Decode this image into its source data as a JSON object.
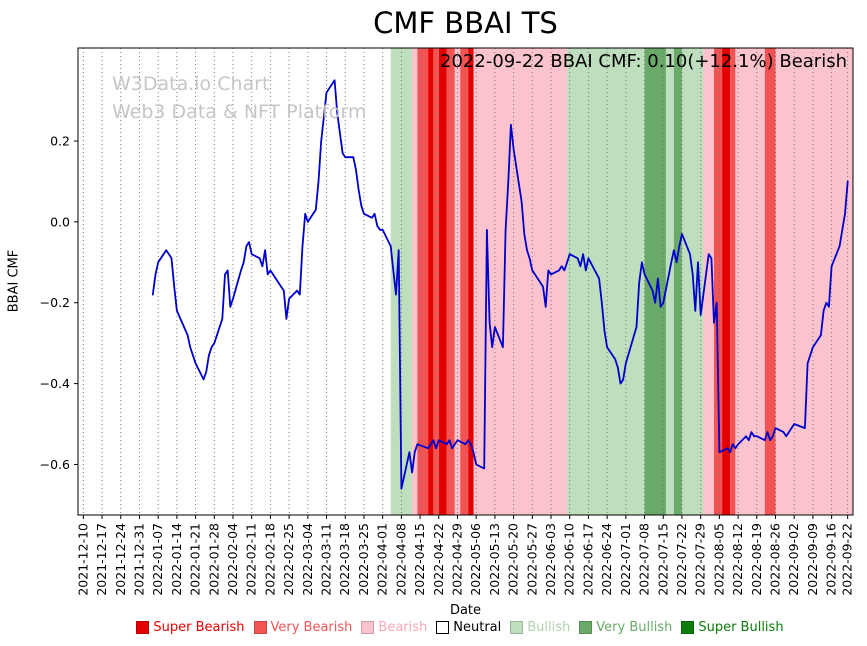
{
  "chart_data": {
    "type": "line",
    "title": "CMF BBAI TS",
    "annotation": "2022-09-22 BBAI CMF: 0.10(+12.1%) Bearish",
    "watermark": {
      "line1": "W3Data.io Chart",
      "line2": "Web3 Data & NFT Platform"
    },
    "xlabel": "Date",
    "ylabel": "BBAI CMF",
    "xlim": [
      "2021-12-08",
      "2022-09-24"
    ],
    "ylim": [
      -0.725,
      0.43
    ],
    "line_color": "#0000cd",
    "grid": {
      "axis": "x",
      "style": "dotted",
      "color": "#6e6e6e"
    },
    "x_ticks": [
      "2021-12-10",
      "2021-12-17",
      "2021-12-24",
      "2021-12-31",
      "2022-01-07",
      "2022-01-14",
      "2022-01-21",
      "2022-01-28",
      "2022-02-04",
      "2022-02-11",
      "2022-02-18",
      "2022-02-25",
      "2022-03-04",
      "2022-03-11",
      "2022-03-18",
      "2022-03-25",
      "2022-04-01",
      "2022-04-08",
      "2022-04-15",
      "2022-04-22",
      "2022-04-29",
      "2022-05-06",
      "2022-05-13",
      "2022-05-20",
      "2022-05-27",
      "2022-06-03",
      "2022-06-10",
      "2022-06-17",
      "2022-06-24",
      "2022-07-01",
      "2022-07-08",
      "2022-07-15",
      "2022-07-22",
      "2022-07-29",
      "2022-08-05",
      "2022-08-12",
      "2022-08-19",
      "2022-08-26",
      "2022-09-02",
      "2022-09-09",
      "2022-09-16",
      "2022-09-22"
    ],
    "y_ticks": [
      {
        "value": 0.2,
        "label": "0.2"
      },
      {
        "value": 0.0,
        "label": "0.0"
      },
      {
        "value": -0.2,
        "label": "−0.2"
      },
      {
        "value": -0.4,
        "label": "−0.4"
      },
      {
        "value": -0.6,
        "label": "−0.6"
      }
    ],
    "level_colors": {
      "super_bearish": "#e30000",
      "very_bearish": "#f25454",
      "bearish": "#fbc3cd",
      "neutral": "#ffffff",
      "bullish": "#bedebe",
      "very_bullish": "#69aa69",
      "super_bullish": "#0c7c0c"
    },
    "bands": [
      {
        "start": "2021-12-08",
        "end": "2022-04-04",
        "level": "neutral"
      },
      {
        "start": "2022-04-04",
        "end": "2022-04-12",
        "level": "bullish"
      },
      {
        "start": "2022-04-12",
        "end": "2022-04-14",
        "level": "bearish"
      },
      {
        "start": "2022-04-14",
        "end": "2022-04-18",
        "level": "very_bearish"
      },
      {
        "start": "2022-04-18",
        "end": "2022-04-20",
        "level": "super_bearish"
      },
      {
        "start": "2022-04-20",
        "end": "2022-04-22",
        "level": "very_bearish"
      },
      {
        "start": "2022-04-22",
        "end": "2022-04-25",
        "level": "super_bearish"
      },
      {
        "start": "2022-04-25",
        "end": "2022-04-28",
        "level": "very_bearish"
      },
      {
        "start": "2022-04-28",
        "end": "2022-04-30",
        "level": "bearish"
      },
      {
        "start": "2022-04-30",
        "end": "2022-05-03",
        "level": "very_bearish"
      },
      {
        "start": "2022-05-03",
        "end": "2022-05-05",
        "level": "super_bearish"
      },
      {
        "start": "2022-05-05",
        "end": "2022-06-09",
        "level": "bearish"
      },
      {
        "start": "2022-06-09",
        "end": "2022-07-08",
        "level": "bullish"
      },
      {
        "start": "2022-07-08",
        "end": "2022-07-16",
        "level": "very_bullish"
      },
      {
        "start": "2022-07-16",
        "end": "2022-07-19",
        "level": "bullish"
      },
      {
        "start": "2022-07-19",
        "end": "2022-07-22",
        "level": "very_bullish"
      },
      {
        "start": "2022-07-22",
        "end": "2022-07-30",
        "level": "bullish"
      },
      {
        "start": "2022-07-30",
        "end": "2022-08-03",
        "level": "bearish"
      },
      {
        "start": "2022-08-03",
        "end": "2022-08-06",
        "level": "very_bearish"
      },
      {
        "start": "2022-08-06",
        "end": "2022-08-09",
        "level": "super_bearish"
      },
      {
        "start": "2022-08-09",
        "end": "2022-08-11",
        "level": "very_bearish"
      },
      {
        "start": "2022-08-11",
        "end": "2022-08-22",
        "level": "bearish"
      },
      {
        "start": "2022-08-22",
        "end": "2022-08-26",
        "level": "very_bearish"
      },
      {
        "start": "2022-08-26",
        "end": "2022-09-24",
        "level": "bearish"
      }
    ],
    "series": [
      {
        "name": "BBAI CMF",
        "points": [
          [
            "2022-01-05",
            -0.18
          ],
          [
            "2022-01-06",
            -0.13
          ],
          [
            "2022-01-07",
            -0.1
          ],
          [
            "2022-01-10",
            -0.07
          ],
          [
            "2022-01-11",
            -0.08
          ],
          [
            "2022-01-12",
            -0.09
          ],
          [
            "2022-01-13",
            -0.16
          ],
          [
            "2022-01-14",
            -0.22
          ],
          [
            "2022-01-18",
            -0.28
          ],
          [
            "2022-01-19",
            -0.31
          ],
          [
            "2022-01-20",
            -0.33
          ],
          [
            "2022-01-21",
            -0.35
          ],
          [
            "2022-01-24",
            -0.39
          ],
          [
            "2022-01-25",
            -0.37
          ],
          [
            "2022-01-26",
            -0.33
          ],
          [
            "2022-01-27",
            -0.31
          ],
          [
            "2022-01-28",
            -0.3
          ],
          [
            "2022-01-31",
            -0.24
          ],
          [
            "2022-02-01",
            -0.13
          ],
          [
            "2022-02-02",
            -0.12
          ],
          [
            "2022-02-03",
            -0.21
          ],
          [
            "2022-02-04",
            -0.19
          ],
          [
            "2022-02-07",
            -0.12
          ],
          [
            "2022-02-08",
            -0.1
          ],
          [
            "2022-02-09",
            -0.06
          ],
          [
            "2022-02-10",
            -0.05
          ],
          [
            "2022-02-11",
            -0.08
          ],
          [
            "2022-02-14",
            -0.09
          ],
          [
            "2022-02-15",
            -0.11
          ],
          [
            "2022-02-16",
            -0.07
          ],
          [
            "2022-02-17",
            -0.13
          ],
          [
            "2022-02-18",
            -0.12
          ],
          [
            "2022-02-22",
            -0.16
          ],
          [
            "2022-02-23",
            -0.17
          ],
          [
            "2022-02-24",
            -0.24
          ],
          [
            "2022-02-25",
            -0.19
          ],
          [
            "2022-02-28",
            -0.17
          ],
          [
            "2022-03-01",
            -0.18
          ],
          [
            "2022-03-02",
            -0.06
          ],
          [
            "2022-03-03",
            0.02
          ],
          [
            "2022-03-04",
            0.0
          ],
          [
            "2022-03-07",
            0.03
          ],
          [
            "2022-03-08",
            0.1
          ],
          [
            "2022-03-09",
            0.2
          ],
          [
            "2022-03-10",
            0.26
          ],
          [
            "2022-03-11",
            0.32
          ],
          [
            "2022-03-14",
            0.35
          ],
          [
            "2022-03-15",
            0.27
          ],
          [
            "2022-03-16",
            0.22
          ],
          [
            "2022-03-17",
            0.17
          ],
          [
            "2022-03-18",
            0.16
          ],
          [
            "2022-03-21",
            0.16
          ],
          [
            "2022-03-22",
            0.13
          ],
          [
            "2022-03-23",
            0.08
          ],
          [
            "2022-03-24",
            0.04
          ],
          [
            "2022-03-25",
            0.02
          ],
          [
            "2022-03-28",
            0.01
          ],
          [
            "2022-03-29",
            0.02
          ],
          [
            "2022-03-30",
            -0.01
          ],
          [
            "2022-03-31",
            -0.02
          ],
          [
            "2022-04-01",
            -0.02
          ],
          [
            "2022-04-04",
            -0.06
          ],
          [
            "2022-04-05",
            -0.12
          ],
          [
            "2022-04-06",
            -0.18
          ],
          [
            "2022-04-07",
            -0.07
          ],
          [
            "2022-04-08",
            -0.66
          ],
          [
            "2022-04-11",
            -0.57
          ],
          [
            "2022-04-12",
            -0.62
          ],
          [
            "2022-04-13",
            -0.57
          ],
          [
            "2022-04-14",
            -0.55
          ],
          [
            "2022-04-18",
            -0.56
          ],
          [
            "2022-04-19",
            -0.55
          ],
          [
            "2022-04-20",
            -0.54
          ],
          [
            "2022-04-21",
            -0.56
          ],
          [
            "2022-04-22",
            -0.54
          ],
          [
            "2022-04-25",
            -0.55
          ],
          [
            "2022-04-26",
            -0.54
          ],
          [
            "2022-04-27",
            -0.56
          ],
          [
            "2022-04-28",
            -0.55
          ],
          [
            "2022-04-29",
            -0.54
          ],
          [
            "2022-05-02",
            -0.55
          ],
          [
            "2022-05-03",
            -0.54
          ],
          [
            "2022-05-04",
            -0.55
          ],
          [
            "2022-05-05",
            -0.57
          ],
          [
            "2022-05-06",
            -0.6
          ],
          [
            "2022-05-09",
            -0.61
          ],
          [
            "2022-05-10",
            -0.02
          ],
          [
            "2022-05-11",
            -0.25
          ],
          [
            "2022-05-12",
            -0.31
          ],
          [
            "2022-05-13",
            -0.26
          ],
          [
            "2022-05-16",
            -0.31
          ],
          [
            "2022-05-17",
            -0.02
          ],
          [
            "2022-05-18",
            0.1
          ],
          [
            "2022-05-19",
            0.24
          ],
          [
            "2022-05-20",
            0.18
          ],
          [
            "2022-05-23",
            0.05
          ],
          [
            "2022-05-24",
            -0.03
          ],
          [
            "2022-05-25",
            -0.07
          ],
          [
            "2022-05-26",
            -0.09
          ],
          [
            "2022-05-27",
            -0.12
          ],
          [
            "2022-05-31",
            -0.16
          ],
          [
            "2022-06-01",
            -0.21
          ],
          [
            "2022-06-02",
            -0.12
          ],
          [
            "2022-06-03",
            -0.13
          ],
          [
            "2022-06-06",
            -0.12
          ],
          [
            "2022-06-07",
            -0.11
          ],
          [
            "2022-06-08",
            -0.12
          ],
          [
            "2022-06-09",
            -0.1
          ],
          [
            "2022-06-10",
            -0.08
          ],
          [
            "2022-06-13",
            -0.09
          ],
          [
            "2022-06-14",
            -0.11
          ],
          [
            "2022-06-15",
            -0.08
          ],
          [
            "2022-06-16",
            -0.12
          ],
          [
            "2022-06-17",
            -0.09
          ],
          [
            "2022-06-21",
            -0.14
          ],
          [
            "2022-06-22",
            -0.2
          ],
          [
            "2022-06-23",
            -0.27
          ],
          [
            "2022-06-24",
            -0.31
          ],
          [
            "2022-06-27",
            -0.34
          ],
          [
            "2022-06-28",
            -0.36
          ],
          [
            "2022-06-29",
            -0.4
          ],
          [
            "2022-06-30",
            -0.39
          ],
          [
            "2022-07-01",
            -0.35
          ],
          [
            "2022-07-05",
            -0.26
          ],
          [
            "2022-07-06",
            -0.15
          ],
          [
            "2022-07-07",
            -0.1
          ],
          [
            "2022-07-08",
            -0.13
          ],
          [
            "2022-07-11",
            -0.17
          ],
          [
            "2022-07-12",
            -0.2
          ],
          [
            "2022-07-13",
            -0.14
          ],
          [
            "2022-07-14",
            -0.21
          ],
          [
            "2022-07-15",
            -0.2
          ],
          [
            "2022-07-18",
            -0.1
          ],
          [
            "2022-07-19",
            -0.07
          ],
          [
            "2022-07-20",
            -0.1
          ],
          [
            "2022-07-21",
            -0.06
          ],
          [
            "2022-07-22",
            -0.03
          ],
          [
            "2022-07-25",
            -0.08
          ],
          [
            "2022-07-26",
            -0.13
          ],
          [
            "2022-07-27",
            -0.22
          ],
          [
            "2022-07-28",
            -0.1
          ],
          [
            "2022-07-29",
            -0.23
          ],
          [
            "2022-08-01",
            -0.08
          ],
          [
            "2022-08-02",
            -0.09
          ],
          [
            "2022-08-03",
            -0.25
          ],
          [
            "2022-08-04",
            -0.2
          ],
          [
            "2022-08-05",
            -0.57
          ],
          [
            "2022-08-08",
            -0.56
          ],
          [
            "2022-08-09",
            -0.57
          ],
          [
            "2022-08-10",
            -0.55
          ],
          [
            "2022-08-11",
            -0.56
          ],
          [
            "2022-08-12",
            -0.55
          ],
          [
            "2022-08-15",
            -0.53
          ],
          [
            "2022-08-16",
            -0.54
          ],
          [
            "2022-08-17",
            -0.52
          ],
          [
            "2022-08-18",
            -0.53
          ],
          [
            "2022-08-19",
            -0.53
          ],
          [
            "2022-08-22",
            -0.54
          ],
          [
            "2022-08-23",
            -0.52
          ],
          [
            "2022-08-24",
            -0.54
          ],
          [
            "2022-08-25",
            -0.53
          ],
          [
            "2022-08-26",
            -0.51
          ],
          [
            "2022-08-29",
            -0.52
          ],
          [
            "2022-08-30",
            -0.53
          ],
          [
            "2022-08-31",
            -0.52
          ],
          [
            "2022-09-01",
            -0.51
          ],
          [
            "2022-09-02",
            -0.5
          ],
          [
            "2022-09-06",
            -0.51
          ],
          [
            "2022-09-07",
            -0.35
          ],
          [
            "2022-09-08",
            -0.33
          ],
          [
            "2022-09-09",
            -0.31
          ],
          [
            "2022-09-12",
            -0.28
          ],
          [
            "2022-09-13",
            -0.22
          ],
          [
            "2022-09-14",
            -0.2
          ],
          [
            "2022-09-15",
            -0.21
          ],
          [
            "2022-09-16",
            -0.11
          ],
          [
            "2022-09-19",
            -0.06
          ],
          [
            "2022-09-20",
            -0.02
          ],
          [
            "2022-09-21",
            0.02
          ],
          [
            "2022-09-22",
            0.1
          ]
        ]
      }
    ],
    "legend": [
      {
        "label": "Super Bearish",
        "color": "#e30000",
        "text_color": "#e30000"
      },
      {
        "label": "Very Bearish",
        "color": "#f25454",
        "text_color": "#f25454"
      },
      {
        "label": "Bearish",
        "color": "#fbc3cd",
        "text_color": "#f8a8b8"
      },
      {
        "label": "Neutral",
        "color": "#ffffff",
        "text_color": "#000000",
        "border_color": "#000000"
      },
      {
        "label": "Bullish",
        "color": "#bedebe",
        "text_color": "#aed4ae"
      },
      {
        "label": "Very Bullish",
        "color": "#69aa69",
        "text_color": "#69aa69"
      },
      {
        "label": "Super Bullish",
        "color": "#0c7c0c",
        "text_color": "#0c7c0c"
      }
    ]
  }
}
